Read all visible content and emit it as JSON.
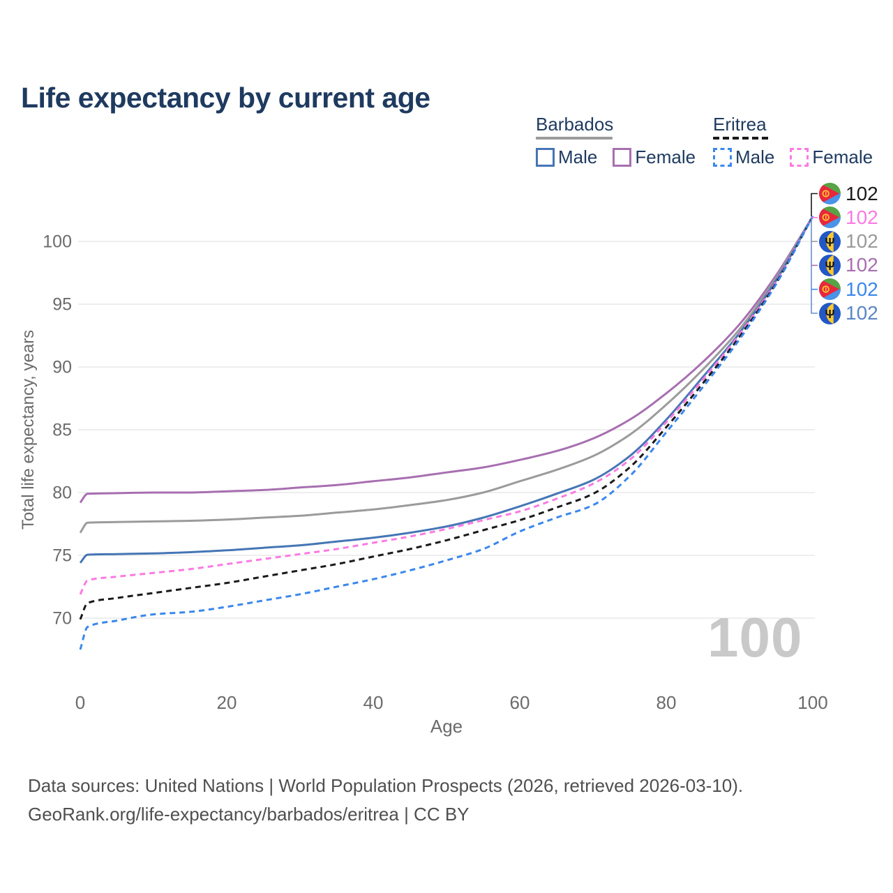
{
  "title": "Life expectancy by current age",
  "watermark": "100",
  "colors": {
    "title_navy": "#1e3a5f",
    "axis_text": "#6b6b6b",
    "gridline": "#e9e9e9",
    "footer_text": "#4f4f4f",
    "watermark_gray": "#c9c9c9",
    "barbados_male": "#4576b5",
    "barbados_female": "#a76fb0",
    "barbados_total": "#9b9b9b",
    "eritrea_male": "#3b87ec",
    "eritrea_female": "#fb7ae2",
    "eritrea_total": "#1a1a1a",
    "bracket_lower": "#6b8fce"
  },
  "legend": {
    "groups": [
      {
        "label": "Barbados",
        "line_style": "solid",
        "items": [
          {
            "label": "Male",
            "color_key": "barbados_male"
          },
          {
            "label": "Female",
            "color_key": "barbados_female"
          }
        ]
      },
      {
        "label": "Eritrea",
        "line_style": "dashed",
        "items": [
          {
            "label": "Male",
            "color_key": "eritrea_male"
          },
          {
            "label": "Female",
            "color_key": "eritrea_female"
          }
        ]
      }
    ]
  },
  "end_labels": [
    {
      "flag": "eritrea",
      "series": "Eritrea Both sexes",
      "value": "102",
      "color": "#1a1a1a"
    },
    {
      "flag": "eritrea",
      "series": "Eritrea Female",
      "value": "102",
      "color": "#fb7ae2"
    },
    {
      "flag": "barbados",
      "series": "Barbados Both sexes",
      "value": "102",
      "color": "#9a9a9a"
    },
    {
      "flag": "barbados",
      "series": "Barbados Female",
      "value": "102",
      "color": "#a76fb0"
    },
    {
      "flag": "eritrea",
      "series": "Eritrea Male",
      "value": "102",
      "color": "#3b87ec"
    },
    {
      "flag": "barbados",
      "series": "Barbados Male",
      "value": "102",
      "color": "#5b86c5"
    }
  ],
  "chart_data": {
    "type": "line",
    "title": "Life expectancy by current age",
    "xlabel": "Age",
    "ylabel": "Total life expectancy, years",
    "xlim": [
      0,
      100
    ],
    "ylim": [
      67,
      103
    ],
    "x_ticks": [
      0,
      20,
      40,
      60,
      80,
      100
    ],
    "y_ticks": [
      70,
      75,
      80,
      85,
      90,
      95,
      100
    ],
    "grid": "horizontal",
    "legend_position": "top-right",
    "x": [
      0,
      1,
      5,
      10,
      15,
      20,
      25,
      30,
      35,
      40,
      45,
      50,
      55,
      60,
      65,
      70,
      75,
      80,
      85,
      90,
      95,
      100
    ],
    "series": [
      {
        "name": "Barbados Female",
        "color_key": "barbados_female",
        "dash": false,
        "values": [
          79.2,
          79.9,
          79.95,
          80.0,
          80.0,
          80.1,
          80.2,
          80.4,
          80.6,
          80.9,
          81.2,
          81.6,
          82.0,
          82.6,
          83.3,
          84.3,
          85.8,
          87.9,
          90.4,
          93.4,
          97.3,
          102
        ]
      },
      {
        "name": "Barbados Both sexes",
        "color_key": "barbados_total",
        "dash": false,
        "values": [
          76.8,
          77.6,
          77.65,
          77.7,
          77.75,
          77.85,
          78.0,
          78.15,
          78.4,
          78.65,
          79.0,
          79.4,
          80.0,
          80.9,
          81.8,
          82.9,
          84.6,
          87.0,
          89.8,
          93.0,
          97.1,
          102
        ]
      },
      {
        "name": "Barbados Male",
        "color_key": "barbados_male",
        "dash": false,
        "values": [
          74.4,
          75.05,
          75.1,
          75.15,
          75.25,
          75.4,
          75.6,
          75.8,
          76.1,
          76.4,
          76.8,
          77.3,
          78.0,
          78.9,
          79.9,
          81.0,
          82.9,
          85.8,
          89.2,
          92.7,
          96.9,
          102
        ]
      },
      {
        "name": "Eritrea Female",
        "color_key": "eritrea_female",
        "dash": true,
        "values": [
          71.9,
          73.0,
          73.3,
          73.6,
          73.9,
          74.3,
          74.7,
          75.1,
          75.5,
          76.0,
          76.5,
          77.1,
          77.8,
          78.5,
          79.5,
          80.7,
          82.6,
          85.6,
          89.0,
          92.6,
          96.8,
          102
        ]
      },
      {
        "name": "Eritrea Both sexes",
        "color_key": "eritrea_total",
        "dash": true,
        "values": [
          69.9,
          71.2,
          71.6,
          72.0,
          72.4,
          72.8,
          73.3,
          73.8,
          74.3,
          74.9,
          75.5,
          76.2,
          77.0,
          77.8,
          78.8,
          79.9,
          82.0,
          85.2,
          88.7,
          92.4,
          96.7,
          102
        ]
      },
      {
        "name": "Eritrea Male",
        "color_key": "eritrea_male",
        "dash": true,
        "values": [
          67.5,
          69.3,
          69.8,
          70.3,
          70.5,
          70.9,
          71.4,
          71.9,
          72.5,
          73.1,
          73.8,
          74.6,
          75.5,
          76.9,
          78.0,
          79.0,
          81.3,
          84.8,
          88.4,
          92.2,
          96.6,
          102
        ]
      }
    ]
  },
  "footer": {
    "line1": "Data sources: United Nations | World Population Prospects (2026, retrieved 2026-03-10).",
    "line2": "GeoRank.org/life-expectancy/barbados/eritrea | CC BY"
  }
}
